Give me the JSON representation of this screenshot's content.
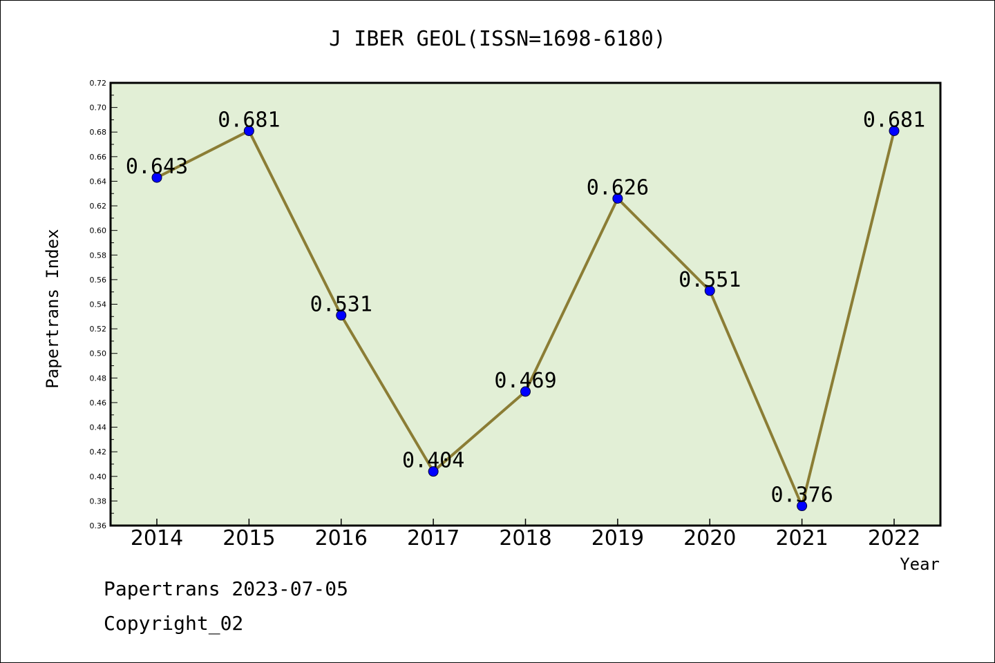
{
  "chart_data": {
    "type": "line",
    "title": "J IBER GEOL(ISSN=1698-6180)",
    "xlabel": "Year",
    "ylabel": "Papertrans Index",
    "categories": [
      "2014",
      "2015",
      "2016",
      "2017",
      "2018",
      "2019",
      "2020",
      "2021",
      "2022"
    ],
    "series": [
      {
        "values": [
          0.643,
          0.681,
          0.531,
          0.404,
          0.469,
          0.626,
          0.551,
          0.376,
          0.681
        ]
      }
    ],
    "data_labels": [
      "0.643",
      "0.681",
      "0.531",
      "0.404",
      "0.469",
      "0.626",
      "0.551",
      "0.376",
      "0.681"
    ],
    "ylim": [
      0.36,
      0.72
    ],
    "yticks": [
      "0.36",
      "0.38",
      "0.40",
      "0.42",
      "0.44",
      "0.46",
      "0.48",
      "0.50",
      "0.52",
      "0.54",
      "0.56",
      "0.58",
      "0.60",
      "0.62",
      "0.64",
      "0.66",
      "0.68",
      "0.70",
      "0.72"
    ],
    "grid": false,
    "plot_background": "#e2efd6",
    "line_color": "#8b7d35",
    "marker_color": "#0000ff"
  },
  "footer": {
    "line1": "Papertrans 2023-07-05",
    "line2": "Copyright_02"
  }
}
